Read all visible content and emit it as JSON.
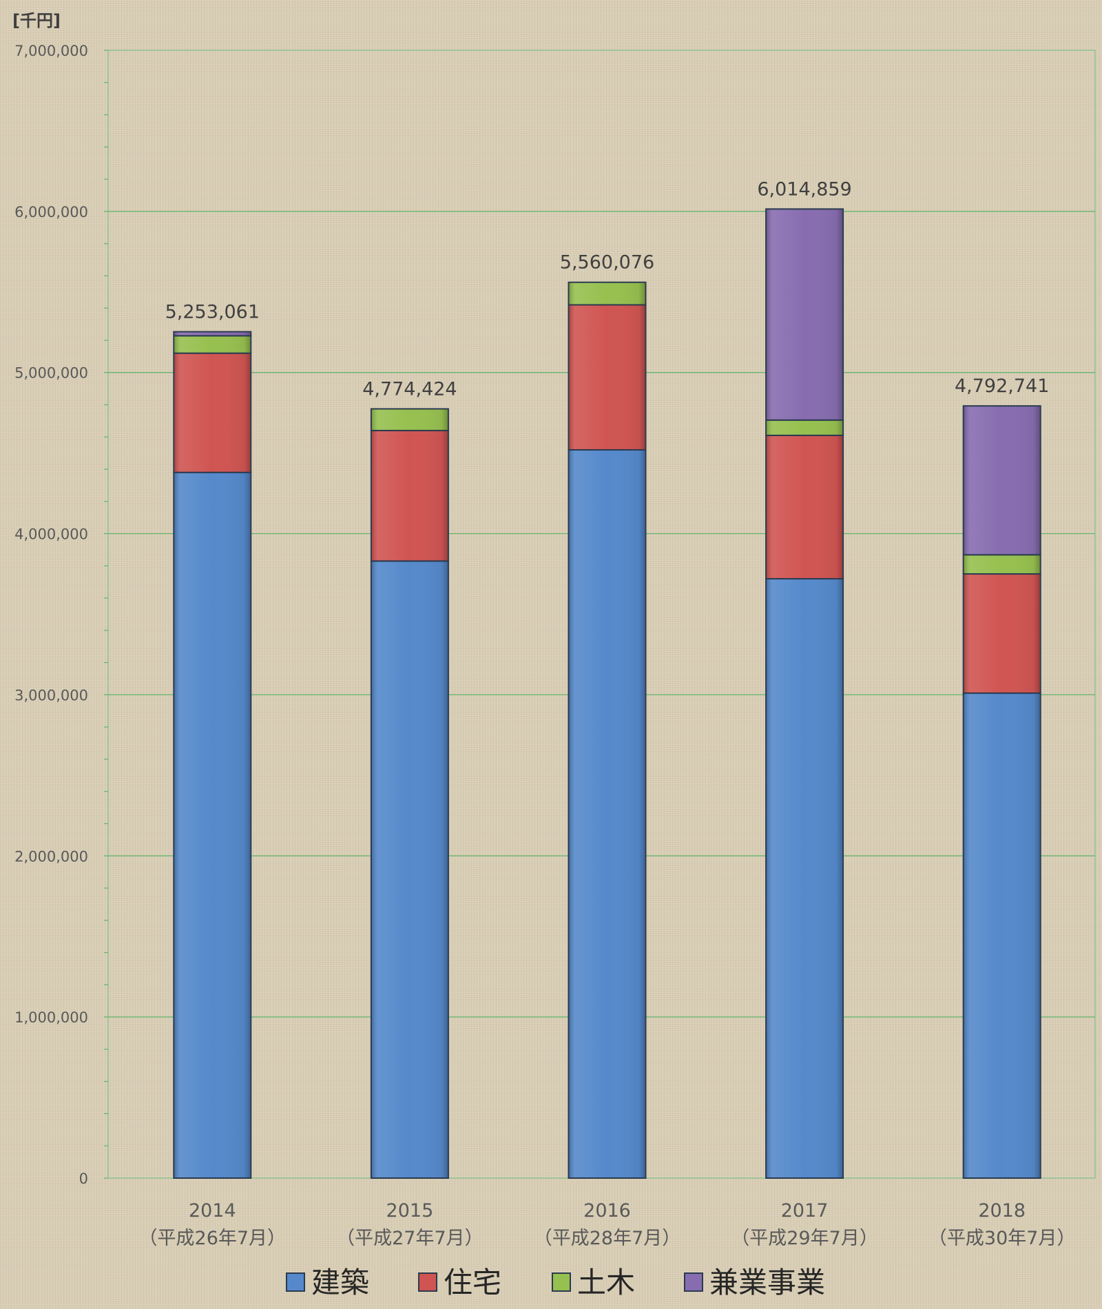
{
  "chart_data": {
    "type": "bar",
    "stacked": true,
    "unit_label": "[千円]",
    "title": "",
    "xlabel": "",
    "ylabel": "",
    "ylim": [
      0,
      7000000
    ],
    "yticks": [
      0,
      1000000,
      2000000,
      3000000,
      4000000,
      5000000,
      6000000,
      7000000
    ],
    "ytick_labels": [
      "0",
      "1,000,000",
      "2,000,000",
      "3,000,000",
      "4,000,000",
      "5,000,000",
      "6,000,000",
      "7,000,000"
    ],
    "grid": true,
    "legend_position": "bottom",
    "categories": [
      {
        "year": "2014",
        "era": "（平成26年7月）"
      },
      {
        "year": "2015",
        "era": "（平成27年7月）"
      },
      {
        "year": "2016",
        "era": "（平成28年7月）"
      },
      {
        "year": "2017",
        "era": "（平成29年7月）"
      },
      {
        "year": "2018",
        "era": "（平成30年7月）"
      }
    ],
    "series": [
      {
        "name": "建築",
        "color": "#5589cb",
        "values": [
          4380000,
          3830000,
          4520000,
          3720000,
          3010000
        ]
      },
      {
        "name": "住宅",
        "color": "#d05552",
        "values": [
          740000,
          810000,
          900000,
          890000,
          740000
        ]
      },
      {
        "name": "土木",
        "color": "#96c04f",
        "values": [
          108061,
          134424,
          140076,
          94859,
          118741
        ]
      },
      {
        "name": "兼業事業",
        "color": "#876db0",
        "values": [
          25000,
          0,
          0,
          1310000,
          924000
        ]
      }
    ],
    "totals": [
      "5,253,061",
      "4,774,424",
      "5,560,076",
      "6,014,859",
      "4,792,741"
    ]
  }
}
